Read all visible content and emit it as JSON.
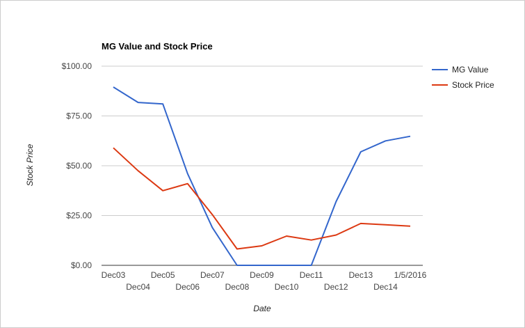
{
  "chart_data": {
    "type": "line",
    "title": "MG Value and Stock Price",
    "xlabel": "Date",
    "ylabel": "Stock Price",
    "categories": [
      "Dec03",
      "Dec04",
      "Dec05",
      "Dec06",
      "Dec07",
      "Dec08",
      "Dec09",
      "Dec10",
      "Dec11",
      "Dec12",
      "Dec13",
      "Dec14",
      "1/5/2016"
    ],
    "y_ticks": [
      "$0.00",
      "$25.00",
      "$50.00",
      "$75.00",
      "$100.00"
    ],
    "ylim": [
      0,
      100
    ],
    "grid": true,
    "legend_position": "right",
    "series": [
      {
        "name": "MG Value",
        "color": "#3366cc",
        "values": [
          89.5,
          81.8,
          81.0,
          46.0,
          19.0,
          0,
          0,
          0,
          0,
          32.0,
          57.0,
          62.5,
          64.8
        ]
      },
      {
        "name": "Stock Price",
        "color": "#dc3912",
        "values": [
          59.0,
          47.5,
          37.5,
          41.0,
          25.5,
          8.2,
          9.8,
          14.7,
          12.7,
          15.2,
          21.0,
          20.4,
          19.7
        ]
      }
    ]
  }
}
